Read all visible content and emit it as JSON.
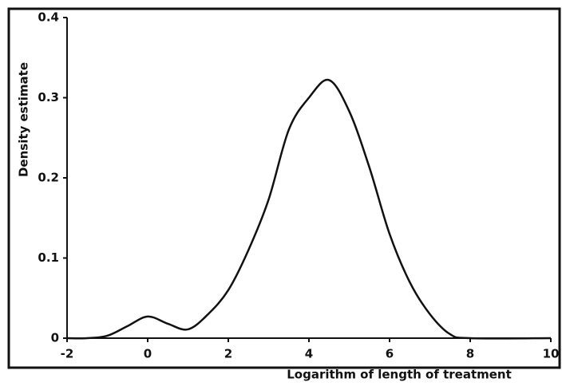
{
  "chart_data": {
    "type": "line",
    "xlabel": "Logarithm of length of treatment",
    "ylabel": "Density estimate",
    "x": [
      -2,
      -1.5,
      -1,
      -0.5,
      0,
      0.5,
      1,
      1.5,
      2,
      2.5,
      3,
      3.5,
      4,
      4.5,
      5,
      5.5,
      6,
      6.5,
      7,
      7.5,
      8,
      10
    ],
    "series": [
      {
        "color": "#111111",
        "values": [
          0,
          0,
          0.003,
          0.015,
          0.027,
          0.018,
          0.011,
          0.03,
          0.06,
          0.11,
          0.173,
          0.26,
          0.3,
          0.322,
          0.283,
          0.213,
          0.13,
          0.07,
          0.03,
          0.005,
          0,
          0
        ]
      }
    ],
    "xlim": [
      -2,
      10
    ],
    "xticks": [
      -2,
      0,
      2,
      4,
      6,
      8,
      10
    ],
    "ylim": [
      0,
      0.4
    ],
    "yticks": [
      0,
      0.1,
      0.2,
      0.3,
      0.4
    ],
    "grid": false
  }
}
